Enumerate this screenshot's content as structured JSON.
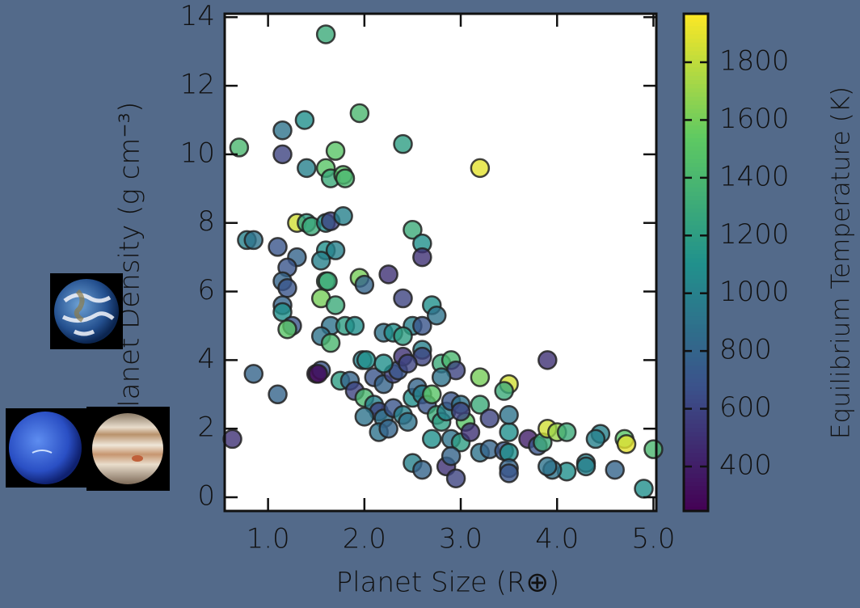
{
  "chart_data": {
    "type": "scatter",
    "xlabel": "Planet Size (R⊕)",
    "ylabel": "Planet Density (g cm⁻³)",
    "xlim": [
      0.55,
      5.03
    ],
    "ylim": [
      -0.4,
      14.1
    ],
    "xticks": [
      {
        "value": 1,
        "label": "1.0"
      },
      {
        "value": 2,
        "label": "2.0"
      },
      {
        "value": 3,
        "label": "3.0"
      },
      {
        "value": 4,
        "label": "4.0"
      },
      {
        "value": 5,
        "label": "5.0"
      }
    ],
    "yticks": [
      0,
      2,
      4,
      6,
      8,
      10,
      12,
      14
    ],
    "colormap": "viridis",
    "colorbar": {
      "label": "Equilibrium Temperature (K)",
      "lim": [
        246,
        1968
      ],
      "ticks": [
        400,
        600,
        800,
        1000,
        1200,
        1400,
        1600,
        1800
      ]
    },
    "x": [
      1.6,
      1.95,
      1.38,
      1.15,
      0.7,
      2.4,
      3.2,
      1.15,
      1.7,
      1.4,
      1.6,
      1.65,
      1.78,
      1.8,
      1.3,
      1.4,
      1.45,
      1.6,
      1.65,
      1.78,
      0.78,
      0.85,
      1.1,
      1.6,
      1.7,
      2.5,
      2.6,
      2.6,
      1.3,
      1.2,
      1.15,
      1.2,
      1.55,
      1.6,
      1.62,
      1.95,
      2.0,
      2.25,
      2.4,
      1.15,
      1.15,
      1.25,
      1.2,
      1.55,
      1.7,
      1.65,
      1.8,
      1.9,
      2.7,
      2.75,
      2.5,
      2.6,
      2.2,
      2.3,
      2.4,
      2.6,
      2.6,
      1.55,
      1.65,
      0.85,
      1.1,
      1.5,
      1.55,
      1.52,
      1.75,
      1.85,
      1.9,
      1.98,
      2.02,
      2.1,
      2.2,
      2.3,
      2.35,
      2.4,
      2.45,
      2.2,
      2.8,
      2.9,
      2.95,
      2.8,
      3.2,
      3.5,
      3.45,
      3.9,
      2.0,
      2.1,
      2.15,
      2.2,
      2.3,
      2.4,
      2.45,
      2.5,
      2.55,
      2.6,
      2.65,
      2.7,
      2.75,
      2.8,
      2.85,
      2.9,
      3.0,
      3.05,
      3.0,
      3.2,
      3.3,
      2.0,
      2.15,
      2.25,
      2.7,
      2.9,
      3.0,
      3.1,
      3.2,
      3.3,
      3.45,
      3.5,
      3.5,
      3.5,
      3.7,
      3.8,
      3.85,
      3.9,
      4.0,
      4.1,
      4.45,
      4.4,
      4.7,
      4.72,
      4.9,
      5.0,
      4.3,
      4.3,
      4.6,
      4.1,
      3.95,
      3.9,
      3.5,
      3.5,
      2.5,
      2.6,
      2.85,
      2.9,
      2.95,
      0.63
    ],
    "values": [
      13.5,
      11.2,
      11.0,
      10.7,
      10.2,
      10.3,
      9.6,
      10.0,
      10.1,
      9.6,
      9.6,
      9.3,
      9.4,
      9.3,
      8.0,
      8.0,
      7.9,
      8.0,
      8.05,
      8.2,
      7.5,
      7.5,
      7.3,
      7.2,
      7.2,
      7.8,
      7.4,
      7.0,
      7.0,
      6.7,
      6.3,
      6.1,
      6.9,
      6.3,
      6.3,
      6.4,
      6.2,
      6.5,
      5.8,
      5.6,
      5.4,
      5.0,
      4.9,
      5.8,
      5.6,
      5.0,
      5.0,
      5.0,
      5.6,
      5.3,
      5.0,
      5.0,
      4.8,
      4.8,
      4.7,
      4.3,
      4.1,
      4.7,
      4.5,
      3.6,
      3.0,
      3.6,
      3.7,
      3.6,
      3.4,
      3.4,
      3.1,
      4.0,
      4.0,
      3.5,
      3.3,
      3.6,
      3.7,
      4.1,
      3.9,
      3.9,
      3.9,
      4.0,
      3.7,
      3.5,
      3.5,
      3.3,
      3.1,
      4.0,
      2.9,
      2.7,
      2.5,
      2.3,
      2.6,
      2.4,
      2.2,
      2.9,
      3.2,
      3.0,
      2.7,
      3.0,
      2.4,
      2.2,
      2.5,
      2.8,
      2.7,
      2.2,
      2.5,
      2.7,
      2.3,
      2.35,
      1.9,
      2.0,
      1.7,
      1.7,
      1.6,
      1.9,
      1.3,
      1.4,
      1.35,
      1.3,
      1.9,
      2.4,
      1.7,
      1.5,
      1.6,
      2.0,
      1.9,
      1.9,
      1.85,
      1.7,
      1.7,
      1.55,
      0.25,
      1.4,
      1.0,
      0.9,
      0.8,
      0.75,
      0.8,
      0.9,
      0.85,
      0.7,
      1.0,
      0.8,
      0.9,
      1.2,
      0.55,
      1.7
    ],
    "c": [
      1300,
      1400,
      1100,
      900,
      1400,
      1200,
      1900,
      600,
      1500,
      1000,
      1500,
      1300,
      1500,
      1400,
      1850,
      1200,
      1300,
      1100,
      600,
      1000,
      1000,
      900,
      700,
      1100,
      1000,
      1300,
      1100,
      500,
      800,
      700,
      800,
      700,
      1000,
      1400,
      1300,
      1600,
      800,
      500,
      600,
      800,
      1100,
      700,
      1500,
      1600,
      1300,
      900,
      1200,
      1100,
      1100,
      900,
      1000,
      700,
      900,
      1100,
      1200,
      1000,
      600,
      900,
      1400,
      800,
      800,
      400,
      700,
      300,
      1200,
      800,
      600,
      1000,
      1100,
      700,
      800,
      600,
      700,
      500,
      600,
      1100,
      1300,
      1400,
      600,
      900,
      1600,
      1850,
      1300,
      500,
      1400,
      1000,
      600,
      900,
      700,
      1000,
      900,
      1100,
      800,
      1000,
      700,
      1500,
      1300,
      1200,
      1000,
      700,
      900,
      1500,
      600,
      1300,
      600,
      900,
      900,
      800,
      1100,
      900,
      1200,
      500,
      900,
      800,
      700,
      1100,
      1100,
      900,
      400,
      700,
      1300,
      1850,
      1700,
      1300,
      1000,
      1000,
      1500,
      1900,
      1100,
      1400,
      1000,
      1000,
      800,
      1100,
      900,
      900,
      800,
      700,
      1000,
      800,
      500,
      800,
      600,
      500
    ]
  }
}
